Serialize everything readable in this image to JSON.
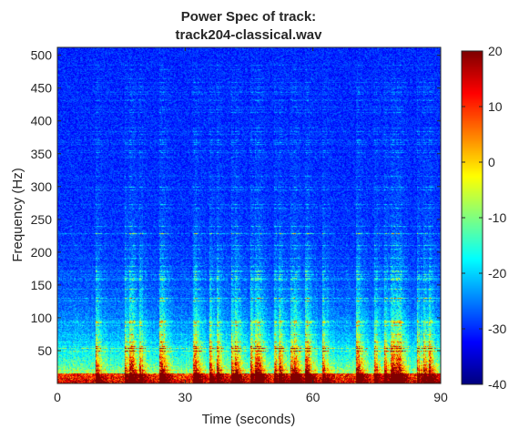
{
  "chart_data": {
    "type": "heatmap",
    "title": [
      "Power Spec of track:",
      "track204-classical.wav"
    ],
    "xlabel": "Time (seconds)",
    "ylabel": "Frequency (Hz)",
    "xlim": [
      0,
      90
    ],
    "ylim": [
      0,
      512
    ],
    "xticks": [
      "0",
      "30",
      "60",
      "90"
    ],
    "yticks": [
      "50",
      "100",
      "150",
      "200",
      "250",
      "300",
      "350",
      "400",
      "450",
      "500"
    ],
    "colorbar": {
      "colormap": "jet",
      "clim": [
        -40,
        20
      ],
      "ticks": [
        "20",
        "10",
        "0",
        "-10",
        "-20",
        "-30",
        "-40"
      ]
    },
    "grid": false,
    "colors": {
      "background_min": "#00008f",
      "max": "#800000"
    }
  }
}
